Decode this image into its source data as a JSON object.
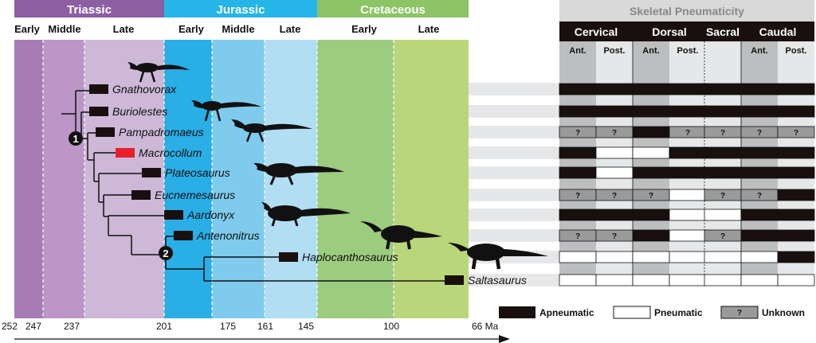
{
  "periods": [
    {
      "name": "Triassic",
      "color": "#8c5fa3"
    },
    {
      "name": "Jurassic",
      "color": "#26b5e8"
    },
    {
      "name": "Cretaceous",
      "color": "#8cc466"
    }
  ],
  "epochs": [
    "Early",
    "Middle",
    "Late",
    "Early",
    "Middle",
    "Late",
    "Early",
    "Late"
  ],
  "epoch_colors": [
    "#a77cb5",
    "#bb96c6",
    "#cdb8d8",
    "#29aee6",
    "#7fcbed",
    "#b1def3",
    "#9ccc7d",
    "#b9d67a"
  ],
  "time_axis": {
    "ticks": [
      "252",
      "247",
      "237",
      "201",
      "175",
      "161",
      "145",
      "100",
      "66 Ma"
    ]
  },
  "taxa": [
    {
      "name": "Gnathovorax",
      "bar_color": "#1a0f0f"
    },
    {
      "name": "Buriolestes",
      "bar_color": "#1a0f0f"
    },
    {
      "name": "Pampadromaeus",
      "bar_color": "#1a0f0f"
    },
    {
      "name": "Macrocollum",
      "bar_color": "#e8202a"
    },
    {
      "name": "Plateosaurus",
      "bar_color": "#1a0f0f"
    },
    {
      "name": "Eucnemesaurus",
      "bar_color": "#1a0f0f"
    },
    {
      "name": "Aardonyx",
      "bar_color": "#1a0f0f"
    },
    {
      "name": "Antenonitrus",
      "bar_color": "#1a0f0f"
    },
    {
      "name": "Haplocanthosaurus",
      "bar_color": "#1a0f0f"
    },
    {
      "name": "Saltasaurus",
      "bar_color": "#1a0f0f"
    }
  ],
  "nodes": [
    "1",
    "2"
  ],
  "pneumaticity": {
    "title": "Skeletal Pneumaticity",
    "groups": [
      "Cervical",
      "Dorsal",
      "Sacral",
      "Caudal"
    ],
    "columns": [
      "Ant.",
      "Post.",
      "Ant.",
      "Post.",
      "",
      "Ant.",
      "Post."
    ],
    "rows": [
      [
        "A",
        "A",
        "A",
        "A",
        "A",
        "A",
        "A"
      ],
      [
        "A",
        "A",
        "A",
        "A",
        "A",
        "A",
        "A"
      ],
      [
        "U",
        "U",
        "A",
        "U",
        "U",
        "U",
        "U"
      ],
      [
        "A",
        "P",
        "P",
        "A",
        "A",
        "A",
        "A"
      ],
      [
        "A",
        "P",
        "A",
        "A",
        "A",
        "A",
        "A"
      ],
      [
        "U",
        "U",
        "U",
        "P",
        "U",
        "U",
        "A"
      ],
      [
        "A",
        "A",
        "A",
        "P",
        "P",
        "A",
        "A"
      ],
      [
        "U",
        "U",
        "A",
        "P",
        "U",
        "A",
        "A"
      ],
      [
        "P",
        "P",
        "P",
        "P",
        "P",
        "P",
        "A"
      ],
      [
        "P",
        "P",
        "P",
        "P",
        "P",
        "P",
        "P"
      ]
    ],
    "unknown_mark": "?",
    "colors": {
      "apneumatic": "#1a0f0f",
      "pneumatic": "#ffffff",
      "unknown": "#9a9a9a"
    }
  },
  "legend": [
    {
      "key": "A",
      "label": "Apneumatic"
    },
    {
      "key": "P",
      "label": "Pneumatic"
    },
    {
      "key": "U",
      "label": "Unknown"
    }
  ]
}
